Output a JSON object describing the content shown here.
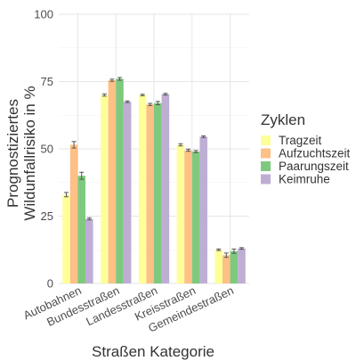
{
  "chart_data": {
    "type": "bar",
    "categories": [
      "Autobahnen",
      "Bundesstraßen",
      "Landesstraßen",
      "Kreisstraßen",
      "Gemeindestraßen"
    ],
    "series": [
      {
        "name": "Tragzeit",
        "color": "#FFFF99",
        "values": [
          33,
          70,
          70,
          51.5,
          12.5
        ],
        "errors": [
          0.8,
          0.4,
          0.3,
          0.4,
          0.3
        ]
      },
      {
        "name": "Aufzuchtszeit",
        "color": "#FDC086",
        "values": [
          51.5,
          75.5,
          66.5,
          49.5,
          10.5
        ],
        "errors": [
          1.2,
          0.4,
          0.4,
          0.4,
          0.8
        ]
      },
      {
        "name": "Paarungszeit",
        "color": "#7FC97F",
        "values": [
          40,
          76,
          67,
          49,
          12
        ],
        "errors": [
          1.3,
          0.5,
          0.6,
          0.4,
          0.8
        ]
      },
      {
        "name": "Keimruhe",
        "color": "#BEAED4",
        "values": [
          24,
          67.5,
          70.3,
          54.5,
          13
        ],
        "errors": [
          0.4,
          0.3,
          0.3,
          0.3,
          0.3
        ]
      }
    ],
    "xlabel": "Straßen Kategorie",
    "ylabel_lines": [
      "Prognostiziertes",
      "Wildunfallrisiko in %"
    ],
    "ylim": [
      0,
      100
    ],
    "yticks": [
      0,
      25,
      50,
      75,
      100
    ],
    "grid": true,
    "legend": {
      "title": "Zyklen",
      "placement": "right"
    }
  }
}
